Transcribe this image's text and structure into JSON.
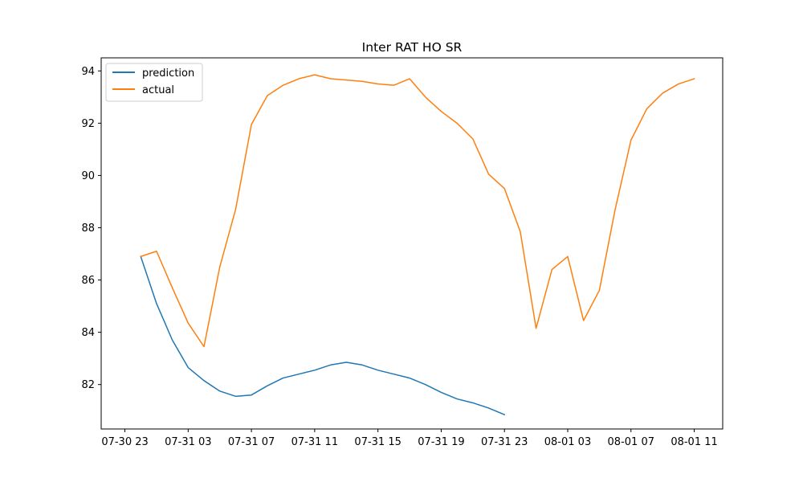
{
  "chart_data": {
    "type": "line",
    "title": "Inter RAT HO SR",
    "xlabel": "",
    "ylabel": "",
    "x_unit": "hours",
    "x_ticks": [
      {
        "x": 0,
        "label": "07-30 23"
      },
      {
        "x": 4,
        "label": "07-31 03"
      },
      {
        "x": 8,
        "label": "07-31 07"
      },
      {
        "x": 12,
        "label": "07-31 11"
      },
      {
        "x": 16,
        "label": "07-31 15"
      },
      {
        "x": 20,
        "label": "07-31 19"
      },
      {
        "x": 24,
        "label": "07-31 23"
      },
      {
        "x": 28,
        "label": "08-01 03"
      },
      {
        "x": 32,
        "label": "08-01 07"
      },
      {
        "x": 36,
        "label": "08-01 11"
      }
    ],
    "y_ticks": [
      82,
      84,
      86,
      88,
      90,
      92,
      94
    ],
    "xlim": [
      -1.5,
      37.8
    ],
    "ylim": [
      80.3,
      94.5
    ],
    "grid": false,
    "legend": "upper left",
    "series": [
      {
        "name": "prediction",
        "color": "#1f77b4",
        "x": [
          1,
          2,
          3,
          4,
          5,
          6,
          7,
          8,
          9,
          10,
          11,
          12,
          13,
          14,
          15,
          16,
          17,
          18,
          19,
          20,
          21,
          22,
          23,
          24
        ],
        "y": [
          86.9,
          85.1,
          83.7,
          82.65,
          82.15,
          81.75,
          81.55,
          81.6,
          81.95,
          82.25,
          82.4,
          82.55,
          82.75,
          82.85,
          82.75,
          82.55,
          82.4,
          82.25,
          82.0,
          81.7,
          81.45,
          81.3,
          81.1,
          80.85
        ]
      },
      {
        "name": "actual",
        "color": "#ff7f0e",
        "x": [
          1,
          2,
          3,
          4,
          5,
          6,
          7,
          8,
          9,
          10,
          11,
          12,
          13,
          14,
          15,
          16,
          17,
          18,
          19,
          20,
          21,
          22,
          23,
          24,
          25,
          26,
          27,
          28,
          29,
          30,
          31,
          32,
          33,
          34,
          35,
          36
        ],
        "y": [
          86.9,
          87.1,
          85.7,
          84.35,
          83.45,
          86.5,
          88.7,
          91.95,
          93.05,
          93.45,
          93.7,
          93.85,
          93.7,
          93.65,
          93.6,
          93.5,
          93.45,
          93.7,
          93.0,
          92.45,
          92.0,
          91.4,
          90.05,
          89.5,
          87.85,
          84.15,
          86.4,
          86.9,
          84.45,
          85.6,
          88.7,
          91.35,
          92.55,
          93.15,
          93.5,
          93.7
        ]
      }
    ]
  }
}
